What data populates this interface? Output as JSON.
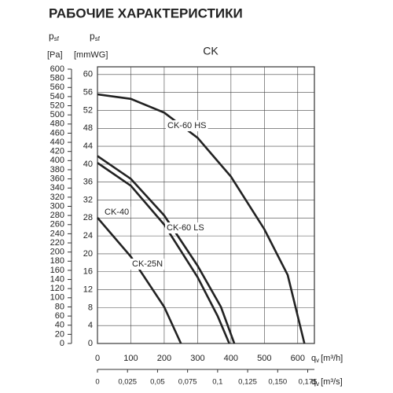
{
  "chart_data": {
    "type": "line",
    "page_title": "РАБОЧИЕ ХАРАКТЕРИСТИКИ",
    "title": "CK",
    "y_symbol": "p",
    "y_sub": "sf",
    "y_unit": "[Pa]",
    "y2_unit": "[mmWG]",
    "x_symbol": "q",
    "x_sub": "v",
    "x_unit": "[m³/h]",
    "x2_unit": "[m³/s]",
    "xlim": [
      0,
      650
    ],
    "xticks": [
      0,
      100,
      200,
      300,
      400,
      500,
      600
    ],
    "x2lim": [
      0,
      0.18056
    ],
    "x2ticks": [
      0,
      {
        "value": 0.025,
        "label": "0,025"
      },
      {
        "value": 0.05,
        "label": "0,05"
      },
      {
        "value": 0.075,
        "label": "0,075"
      },
      {
        "value": 0.1,
        "label": "0,1"
      },
      {
        "value": 0.125,
        "label": "0,125"
      },
      {
        "value": 0.15,
        "label": "0,150"
      },
      {
        "value": 0.175,
        "label": "0,175"
      }
    ],
    "ylim": [
      0,
      600
    ],
    "yticks": [
      0,
      20,
      40,
      60,
      80,
      100,
      120,
      140,
      160,
      180,
      200,
      220,
      240,
      260,
      280,
      300,
      320,
      340,
      360,
      380,
      400,
      420,
      440,
      460,
      480,
      500,
      520,
      540,
      560,
      580,
      600
    ],
    "y2lim": [
      0,
      61.2
    ],
    "y2ticks": [
      0,
      4,
      8,
      12,
      16,
      20,
      24,
      28,
      32,
      36,
      40,
      44,
      48,
      52,
      56,
      60
    ],
    "grid": true,
    "series": [
      {
        "name": "CK-60 HS",
        "color": "#222222",
        "x": [
          0,
          100,
          200,
          300,
          400,
          500,
          570,
          620
        ],
        "values": [
          545,
          535,
          505,
          450,
          365,
          250,
          150,
          0
        ]
      },
      {
        "name": "CK-60 LS",
        "color": "#222222",
        "x": [
          0,
          100,
          200,
          300,
          370,
          410
        ],
        "values": [
          410,
          360,
          280,
          170,
          80,
          0
        ]
      },
      {
        "name": "CK-40",
        "color": "#222222",
        "x": [
          0,
          100,
          200,
          300,
          360,
          395
        ],
        "values": [
          395,
          345,
          260,
          145,
          60,
          0
        ]
      },
      {
        "name": "CK-25N",
        "color": "#222222",
        "x": [
          0,
          100,
          200,
          250
        ],
        "values": [
          275,
          190,
          80,
          0
        ]
      }
    ],
    "annotations": [
      {
        "text": "CK-60 HS",
        "series": 0
      },
      {
        "text": "CK-60 LS",
        "series": 1
      },
      {
        "text": "CK-40",
        "series": 2
      },
      {
        "text": "CK-25N",
        "series": 3
      }
    ]
  }
}
